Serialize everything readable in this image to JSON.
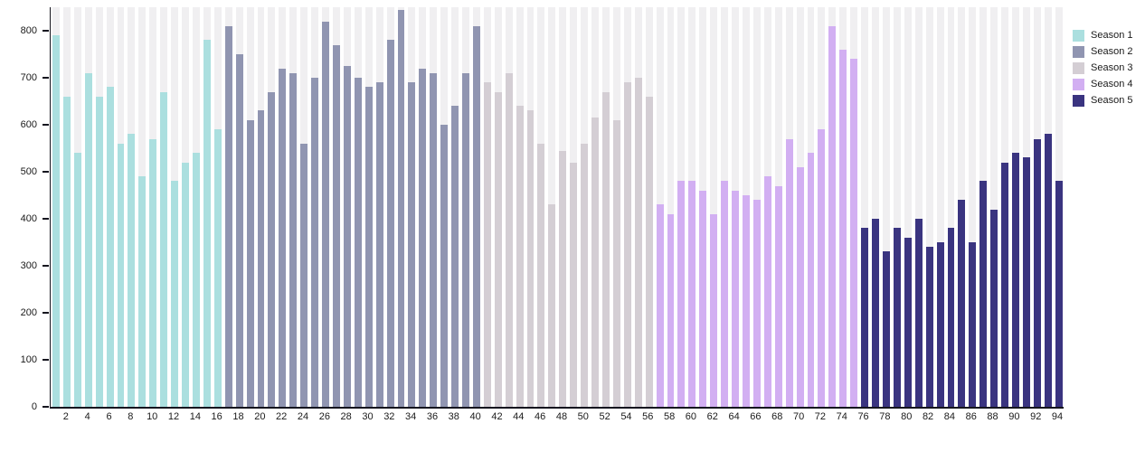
{
  "chart_data": {
    "type": "bar",
    "title": "",
    "xlabel": "",
    "ylabel": "",
    "ylim": [
      0,
      850
    ],
    "yticks": [
      0,
      100,
      200,
      300,
      400,
      500,
      600,
      700,
      800
    ],
    "xtick_labels": [
      2,
      4,
      6,
      8,
      10,
      12,
      14,
      16,
      18,
      20,
      22,
      24,
      26,
      28,
      30,
      32,
      34,
      36,
      38,
      40,
      42,
      44,
      46,
      48,
      50,
      52,
      54,
      56,
      58,
      60,
      62,
      64,
      66,
      68,
      70,
      72,
      74,
      76,
      78,
      80,
      82,
      84,
      86,
      88,
      90,
      92,
      94
    ],
    "x_range": [
      1,
      94
    ],
    "grid": "column-bands",
    "legend_position": "top-right",
    "series": [
      {
        "name": "Season 1",
        "color": "#abdfdf",
        "start_x": 1,
        "values": [
          790,
          660,
          540,
          710,
          660,
          680,
          560,
          580,
          490,
          570,
          670,
          480,
          520,
          540,
          780,
          590
        ]
      },
      {
        "name": "Season 2",
        "color": "#9095b1",
        "start_x": 17,
        "values": [
          810,
          750,
          610,
          630,
          670,
          720,
          710,
          560,
          700,
          820,
          770,
          725,
          700,
          680,
          690,
          780,
          845,
          690,
          720,
          710,
          600,
          640,
          710,
          810
        ]
      },
      {
        "name": "Season 3",
        "color": "#d4ced4",
        "start_x": 41,
        "values": [
          690,
          670,
          710,
          640,
          630,
          560,
          430,
          545,
          520,
          560,
          615,
          670,
          610,
          690,
          700,
          660
        ]
      },
      {
        "name": "Season 4",
        "color": "#d2aff2",
        "start_x": 57,
        "values": [
          430,
          410,
          480,
          480,
          460,
          410,
          480,
          460,
          450,
          440,
          490,
          470,
          570,
          510,
          540,
          590,
          810,
          760,
          740
        ]
      },
      {
        "name": "Season 5",
        "color": "#3a3480",
        "start_x": 76,
        "values": [
          380,
          400,
          330,
          380,
          360,
          400,
          340,
          350,
          380,
          440,
          350,
          480,
          420,
          520,
          540,
          530,
          570,
          580,
          480
        ]
      }
    ]
  },
  "style_colors": {
    "column_band": "#f0eff1",
    "axis_line": "#15151f",
    "tick_label": "#1a1a1a",
    "background": "#ffffff"
  },
  "legend": {
    "items": [
      {
        "label": "Season 1",
        "color": "#abdfdf"
      },
      {
        "label": "Season 2",
        "color": "#9095b1"
      },
      {
        "label": "Season 3",
        "color": "#d4ced4"
      },
      {
        "label": "Season 4",
        "color": "#d2aff2"
      },
      {
        "label": "Season 5",
        "color": "#3a3480"
      }
    ]
  }
}
